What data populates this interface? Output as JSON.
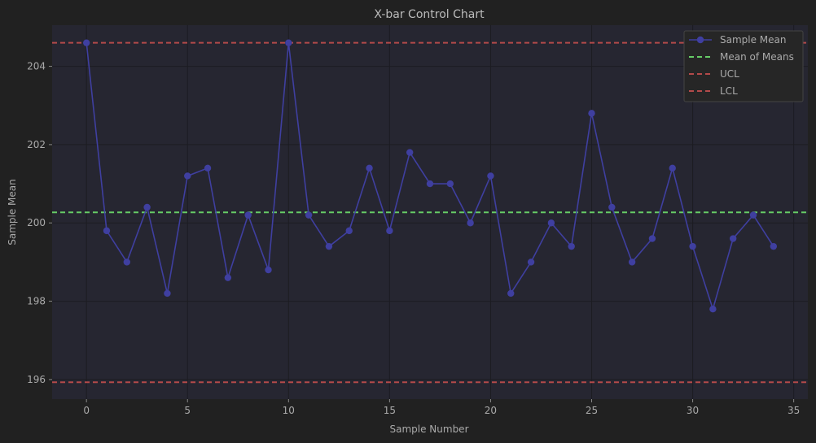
{
  "chart_data": {
    "type": "line",
    "title": "X-bar Control Chart",
    "xlabel": "Sample Number",
    "ylabel": "Sample Mean",
    "xlim": [
      -1.7,
      35.7
    ],
    "ylim": [
      195.5,
      205.05
    ],
    "xticks": [
      0,
      5,
      10,
      15,
      20,
      25,
      30,
      35
    ],
    "yticks": [
      196,
      198,
      200,
      202,
      204
    ],
    "grid": true,
    "legend_position": "top-right",
    "x": [
      0,
      1,
      2,
      3,
      4,
      5,
      6,
      7,
      8,
      9,
      10,
      11,
      12,
      13,
      14,
      15,
      16,
      17,
      18,
      19,
      20,
      21,
      22,
      23,
      24,
      25,
      26,
      27,
      28,
      29,
      30,
      31,
      32,
      33,
      34
    ],
    "series": [
      {
        "name": "Sample Mean",
        "color": "#3f3fa0",
        "marker": "circle",
        "values": [
          204.6,
          199.8,
          199.0,
          200.4,
          198.2,
          201.2,
          201.4,
          198.6,
          200.2,
          198.8,
          204.6,
          200.2,
          199.4,
          199.8,
          201.4,
          199.8,
          201.8,
          201.0,
          201.0,
          200.0,
          201.2,
          198.2,
          199.0,
          200.0,
          199.4,
          202.8,
          200.4,
          199.0,
          199.6,
          201.4,
          199.4,
          197.8,
          199.6,
          200.2,
          199.4
        ]
      }
    ],
    "reference_lines": [
      {
        "name": "Mean of Means",
        "value": 200.27,
        "color": "#66cc66",
        "style": "dashed"
      },
      {
        "name": "UCL",
        "value": 204.6,
        "color": "#b34a4a",
        "style": "dashed"
      },
      {
        "name": "LCL",
        "value": 195.93,
        "color": "#b34a4a",
        "style": "dashed"
      }
    ],
    "colors": {
      "background": "#212121",
      "plot_background": "#262631",
      "grid": "#1c1c22",
      "text": "#aaaaaa"
    }
  }
}
